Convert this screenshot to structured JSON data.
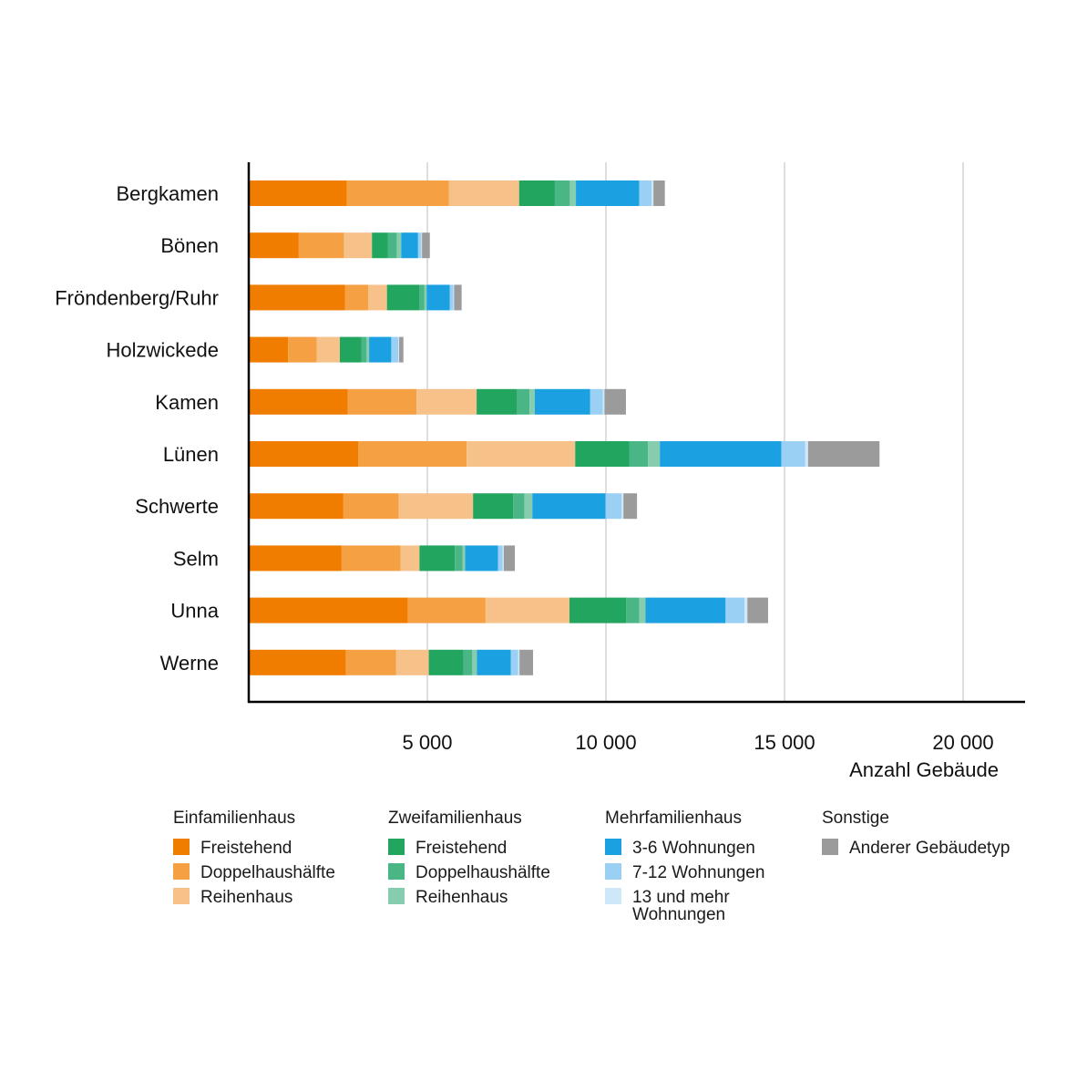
{
  "chart_data": {
    "type": "bar",
    "orientation": "horizontal",
    "stacked": true,
    "xlabel": "Anzahl Gebäude",
    "xlim": [
      0,
      22000
    ],
    "xticks": [
      5000,
      10000,
      15000,
      20000
    ],
    "xtick_labels": [
      "5 000",
      "10 000",
      "15 000",
      "20 000"
    ],
    "grid": "vertical",
    "categories": [
      "Bergkamen",
      "Bönen",
      "Fröndenberg/Ruhr",
      "Holzwickede",
      "Kamen",
      "Lünen",
      "Schwerte",
      "Selm",
      "Unna",
      "Werne"
    ],
    "series": [
      {
        "name": "Freistehend",
        "group": "Einfamilienhaus",
        "color": "#f07d00",
        "values": [
          2750,
          1400,
          2700,
          1100,
          2770,
          3070,
          2650,
          2600,
          4450,
          2720
        ]
      },
      {
        "name": "Doppelhaushälfte",
        "group": "Einfamilienhaus",
        "color": "#f4a043",
        "values": [
          2850,
          1270,
          650,
          800,
          1930,
          3030,
          1550,
          1650,
          2180,
          1400
        ]
      },
      {
        "name": "Reihenhaus",
        "group": "Einfamilienhaus",
        "color": "#f7c18a",
        "values": [
          1970,
          780,
          520,
          650,
          1680,
          3040,
          2080,
          530,
          2350,
          920
        ]
      },
      {
        "name": "Freistehend",
        "group": "Zweifamilienhaus",
        "color": "#22a55e",
        "values": [
          1000,
          450,
          900,
          600,
          1130,
          1510,
          1120,
          990,
          1590,
          970
        ]
      },
      {
        "name": "Doppelhaushälfte",
        "group": "Zweifamilienhaus",
        "color": "#4bb685",
        "values": [
          420,
          250,
          150,
          150,
          350,
          530,
          320,
          220,
          360,
          250
        ]
      },
      {
        "name": "Reihenhaus",
        "group": "Zweifamilienhaus",
        "color": "#86cdb0",
        "values": [
          170,
          120,
          60,
          70,
          150,
          330,
          220,
          70,
          180,
          130
        ]
      },
      {
        "name": "3-6 Wohnungen",
        "group": "Mehrfamilienhaus",
        "color": "#1ba0e2",
        "values": [
          1770,
          470,
          650,
          620,
          1550,
          3400,
          2050,
          920,
          2240,
          950
        ]
      },
      {
        "name": "7-12 Wohnungen",
        "group": "Mehrfamilienhaus",
        "color": "#99d0f3",
        "values": [
          350,
          90,
          100,
          200,
          350,
          670,
          450,
          130,
          530,
          200
        ]
      },
      {
        "name": "13 und mehr Wohnungen",
        "group": "Mehrfamilienhaus",
        "color": "#cfe8f9",
        "values": [
          50,
          20,
          20,
          20,
          50,
          80,
          50,
          30,
          80,
          40
        ]
      },
      {
        "name": "Anderer Gebäudetyp",
        "group": "Sonstige",
        "color": "#9b9b9b",
        "values": [
          320,
          220,
          210,
          120,
          600,
          2000,
          380,
          310,
          580,
          380
        ]
      }
    ]
  },
  "legend": {
    "groups": [
      {
        "title": "Einfamilienhaus",
        "items": [
          {
            "label": "Freistehend",
            "color": "#f07d00"
          },
          {
            "label": "Doppelhaushälfte",
            "color": "#f4a043"
          },
          {
            "label": "Reihenhaus",
            "color": "#f7c18a"
          }
        ]
      },
      {
        "title": "Zweifamilienhaus",
        "items": [
          {
            "label": "Freistehend",
            "color": "#22a55e"
          },
          {
            "label": "Doppelhaushälfte",
            "color": "#4bb685"
          },
          {
            "label": "Reihenhaus",
            "color": "#86cdb0"
          }
        ]
      },
      {
        "title": "Mehrfamilienhaus",
        "items": [
          {
            "label": "3-6 Wohnungen",
            "color": "#1ba0e2"
          },
          {
            "label": "7-12 Wohnungen",
            "color": "#99d0f3"
          },
          {
            "label": "13 und mehr Wohnungen",
            "color": "#cfe8f9"
          }
        ]
      },
      {
        "title": "Sonstige",
        "items": [
          {
            "label": "Anderer Gebäudetyp",
            "color": "#9b9b9b"
          }
        ]
      }
    ]
  }
}
